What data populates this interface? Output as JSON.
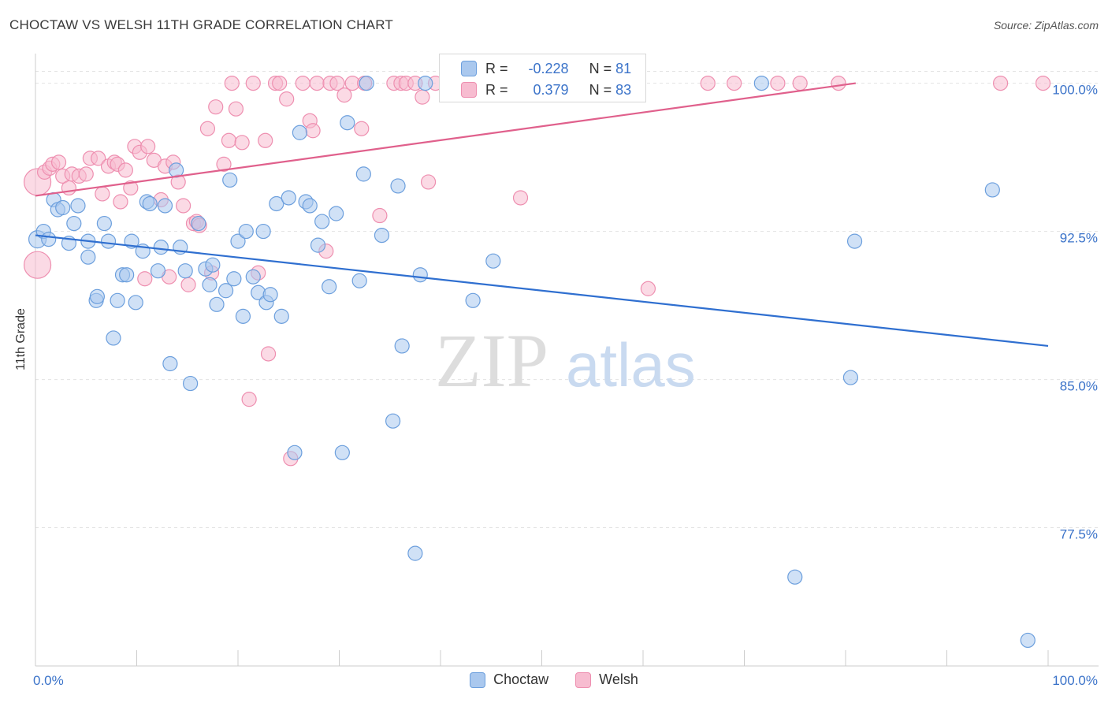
{
  "title": "CHOCTAW VS WELSH 11TH GRADE CORRELATION CHART",
  "source": "Source: ZipAtlas.com",
  "watermark": {
    "zip": "ZIP",
    "atlas": "atlas"
  },
  "legend": {
    "r_label": "R =",
    "n_label": "N =",
    "rows": [
      {
        "name": "Choctaw",
        "r": "-0.228",
        "n": "81"
      },
      {
        "name": "Welsh",
        "r": "0.379",
        "n": "83"
      }
    ]
  },
  "colors": {
    "choctaw_fill": "#aac8ee",
    "choctaw_stroke": "#6c9fdd",
    "choctaw_line": "#2f6fd0",
    "welsh_fill": "#f7bcd0",
    "welsh_stroke": "#ee8fb0",
    "welsh_line": "#e0608c",
    "tick_label": "#3b73c9",
    "grid": "#e3e3e3"
  },
  "chart_data": {
    "type": "scatter",
    "title": "CHOCTAW VS WELSH 11TH GRADE CORRELATION CHART",
    "xlabel": "",
    "ylabel": "11th Grade",
    "xlim": [
      0,
      100
    ],
    "ylim": [
      70.5,
      101.5
    ],
    "x_tick_labels": [
      "0.0%",
      "100.0%"
    ],
    "y_ticks": [
      77.5,
      85.0,
      92.5,
      100.0
    ],
    "y_tick_labels": [
      "77.5%",
      "85.0%",
      "92.5%",
      "100.0%"
    ],
    "grid": true,
    "legend_position": "top-center",
    "series": [
      {
        "name": "Choctaw",
        "trend": {
          "x": [
            0,
            100
          ],
          "y": [
            92.3,
            86.7
          ]
        },
        "points": [
          [
            0.2,
            92.1
          ],
          [
            0.8,
            92.5
          ],
          [
            1.3,
            92.1
          ],
          [
            1.8,
            94.1
          ],
          [
            2.2,
            93.6
          ],
          [
            2.7,
            93.7
          ],
          [
            3.3,
            91.9
          ],
          [
            3.8,
            92.9
          ],
          [
            4.2,
            93.8
          ],
          [
            5.2,
            91.2
          ],
          [
            5.2,
            92.0
          ],
          [
            6.0,
            89.0
          ],
          [
            6.1,
            89.2
          ],
          [
            6.8,
            92.9
          ],
          [
            7.2,
            92.0
          ],
          [
            7.7,
            87.1
          ],
          [
            8.1,
            89.0
          ],
          [
            8.6,
            90.3
          ],
          [
            9.0,
            90.3
          ],
          [
            9.5,
            92.0
          ],
          [
            9.9,
            88.9
          ],
          [
            10.6,
            91.5
          ],
          [
            11.0,
            94.0
          ],
          [
            11.3,
            93.9
          ],
          [
            12.1,
            90.5
          ],
          [
            12.4,
            91.7
          ],
          [
            12.8,
            93.8
          ],
          [
            13.3,
            85.8
          ],
          [
            13.9,
            95.6
          ],
          [
            14.3,
            91.7
          ],
          [
            14.8,
            90.5
          ],
          [
            15.3,
            84.8
          ],
          [
            16.1,
            92.9
          ],
          [
            16.8,
            90.6
          ],
          [
            17.2,
            89.8
          ],
          [
            17.5,
            90.8
          ],
          [
            17.9,
            88.8
          ],
          [
            18.8,
            89.5
          ],
          [
            19.2,
            95.1
          ],
          [
            19.6,
            90.1
          ],
          [
            20.0,
            92.0
          ],
          [
            20.5,
            88.2
          ],
          [
            20.8,
            92.5
          ],
          [
            21.5,
            90.2
          ],
          [
            22.0,
            89.4
          ],
          [
            22.5,
            92.5
          ],
          [
            22.8,
            88.9
          ],
          [
            23.2,
            89.3
          ],
          [
            23.8,
            93.9
          ],
          [
            24.3,
            88.2
          ],
          [
            25.0,
            94.2
          ],
          [
            25.6,
            81.3
          ],
          [
            26.1,
            97.5
          ],
          [
            26.7,
            94.0
          ],
          [
            27.1,
            93.8
          ],
          [
            27.9,
            91.8
          ],
          [
            28.3,
            93.0
          ],
          [
            29.0,
            89.7
          ],
          [
            29.7,
            93.4
          ],
          [
            30.3,
            81.3
          ],
          [
            30.8,
            98.0
          ],
          [
            32.0,
            90.0
          ],
          [
            32.4,
            95.4
          ],
          [
            32.7,
            100.0
          ],
          [
            34.2,
            92.3
          ],
          [
            35.3,
            82.9
          ],
          [
            35.8,
            94.8
          ],
          [
            36.2,
            86.7
          ],
          [
            37.5,
            76.2
          ],
          [
            38.0,
            90.3
          ],
          [
            38.5,
            100.0
          ],
          [
            43.2,
            89.0
          ],
          [
            45.2,
            91.0
          ],
          [
            51.5,
            100.0
          ],
          [
            71.7,
            100.0
          ],
          [
            75.0,
            75.0
          ],
          [
            80.5,
            85.1
          ],
          [
            80.9,
            92.0
          ],
          [
            94.5,
            94.6
          ],
          [
            98.0,
            71.8
          ]
        ]
      },
      {
        "name": "Welsh",
        "trend": {
          "x": [
            0,
            81
          ],
          "y": [
            94.3,
            100.0
          ]
        },
        "points": [
          [
            0.2,
            95.0
          ],
          [
            0.2,
            90.8
          ],
          [
            0.9,
            95.5
          ],
          [
            1.4,
            95.7
          ],
          [
            1.7,
            95.9
          ],
          [
            2.3,
            96.0
          ],
          [
            2.7,
            95.3
          ],
          [
            3.3,
            94.7
          ],
          [
            3.6,
            95.4
          ],
          [
            4.3,
            95.3
          ],
          [
            5.0,
            95.4
          ],
          [
            5.4,
            96.2
          ],
          [
            6.2,
            96.2
          ],
          [
            6.6,
            94.4
          ],
          [
            7.2,
            95.8
          ],
          [
            7.8,
            96.0
          ],
          [
            8.1,
            95.9
          ],
          [
            8.4,
            94.0
          ],
          [
            8.9,
            95.6
          ],
          [
            9.4,
            94.7
          ],
          [
            9.8,
            96.8
          ],
          [
            10.3,
            96.5
          ],
          [
            10.8,
            90.1
          ],
          [
            11.1,
            96.8
          ],
          [
            11.7,
            96.1
          ],
          [
            12.4,
            94.1
          ],
          [
            12.8,
            95.8
          ],
          [
            13.2,
            90.2
          ],
          [
            13.6,
            96.0
          ],
          [
            14.1,
            95.0
          ],
          [
            14.6,
            93.8
          ],
          [
            15.1,
            89.8
          ],
          [
            15.6,
            92.9
          ],
          [
            15.9,
            93.0
          ],
          [
            16.2,
            92.8
          ],
          [
            17.0,
            97.7
          ],
          [
            17.4,
            90.4
          ],
          [
            17.8,
            98.8
          ],
          [
            18.6,
            95.9
          ],
          [
            19.1,
            97.1
          ],
          [
            19.4,
            100.0
          ],
          [
            19.8,
            98.7
          ],
          [
            20.4,
            97.0
          ],
          [
            21.1,
            84.0
          ],
          [
            21.5,
            100.0
          ],
          [
            22.0,
            90.4
          ],
          [
            22.7,
            97.1
          ],
          [
            23.0,
            86.3
          ],
          [
            23.7,
            100.0
          ],
          [
            24.1,
            100.0
          ],
          [
            24.8,
            99.2
          ],
          [
            25.2,
            81.0
          ],
          [
            26.4,
            100.0
          ],
          [
            27.1,
            98.1
          ],
          [
            27.4,
            97.6
          ],
          [
            27.8,
            100.0
          ],
          [
            28.7,
            91.5
          ],
          [
            29.1,
            100.0
          ],
          [
            29.8,
            100.0
          ],
          [
            30.5,
            99.4
          ],
          [
            31.3,
            100.0
          ],
          [
            32.2,
            97.7
          ],
          [
            32.5,
            100.0
          ],
          [
            34.0,
            93.3
          ],
          [
            35.4,
            100.0
          ],
          [
            36.1,
            100.0
          ],
          [
            36.6,
            100.0
          ],
          [
            37.5,
            100.0
          ],
          [
            38.2,
            99.3
          ],
          [
            38.8,
            95.0
          ],
          [
            39.5,
            100.0
          ],
          [
            42.8,
            100.0
          ],
          [
            47.9,
            94.2
          ],
          [
            54.5,
            100.0
          ],
          [
            57.0,
            100.0
          ],
          [
            60.5,
            89.6
          ],
          [
            66.4,
            100.0
          ],
          [
            69.0,
            100.0
          ],
          [
            73.3,
            100.0
          ],
          [
            75.5,
            100.0
          ],
          [
            79.3,
            100.0
          ],
          [
            95.3,
            100.0
          ],
          [
            99.5,
            100.0
          ]
        ]
      }
    ]
  }
}
